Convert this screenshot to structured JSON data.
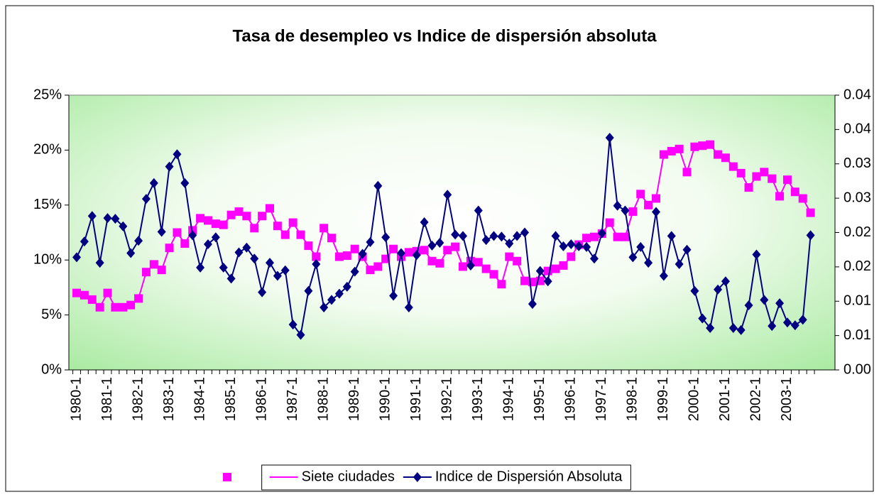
{
  "chart_data": {
    "type": "line",
    "title": "Tasa de desempleo vs Indice de dispersión absoluta",
    "categories": [
      "1980-1",
      null,
      null,
      null,
      "1981-1",
      null,
      null,
      null,
      "1982-1",
      null,
      null,
      null,
      "1983-1",
      null,
      null,
      null,
      "1984-1",
      null,
      null,
      null,
      "1985-1",
      null,
      null,
      null,
      "1986-1",
      null,
      null,
      null,
      "1987-1",
      null,
      null,
      null,
      "1988-1",
      null,
      null,
      null,
      "1989-1",
      null,
      null,
      null,
      "1990-1",
      null,
      null,
      null,
      "1991-1",
      null,
      null,
      null,
      "1992-1",
      null,
      null,
      null,
      "1993-1",
      null,
      null,
      null,
      "1994-1",
      null,
      null,
      null,
      "1995-1",
      null,
      null,
      null,
      "1996-1",
      null,
      null,
      null,
      "1997-1",
      null,
      null,
      null,
      "1998-1",
      null,
      null,
      null,
      "1999-1",
      null,
      null,
      null,
      "2000-1",
      null,
      null,
      null,
      "2001-1",
      null,
      null,
      null,
      "2002-1",
      null,
      null,
      null,
      "2003-1",
      null,
      null,
      null
    ],
    "series": [
      {
        "name": "Siete ciudades",
        "color": "#ff00ff",
        "marker": "square",
        "axis": "y",
        "values": [
          7.0,
          6.8,
          6.4,
          5.7,
          7.0,
          5.7,
          5.7,
          5.9,
          6.5,
          8.9,
          9.6,
          9.1,
          11.1,
          12.5,
          11.5,
          12.7,
          13.8,
          13.6,
          13.3,
          13.2,
          14.1,
          14.4,
          14.0,
          12.9,
          14.0,
          14.7,
          13.1,
          12.3,
          13.4,
          12.3,
          11.3,
          10.3,
          12.9,
          12.0,
          10.3,
          10.4,
          11.0,
          10.3,
          9.1,
          9.4,
          10.1,
          11.0,
          10.3,
          10.7,
          10.8,
          10.9,
          9.9,
          9.7,
          10.9,
          11.2,
          9.4,
          9.9,
          9.8,
          9.2,
          8.7,
          7.8,
          10.3,
          9.9,
          8.1,
          8.0,
          8.1,
          9.0,
          9.2,
          9.5,
          10.3,
          11.4,
          12.0,
          12.1,
          12.4,
          13.4,
          12.1,
          12.1,
          14.4,
          16.0,
          15.0,
          15.6,
          19.6,
          19.9,
          20.1,
          18.0,
          20.3,
          20.4,
          20.5,
          19.6,
          19.3,
          18.5,
          17.9,
          16.6,
          17.6,
          18.0,
          17.4,
          15.8,
          17.3,
          16.2,
          15.6,
          14.3
        ]
      },
      {
        "name": "Indice de Dispersión Absoluta",
        "color": "#000080",
        "marker": "diamond",
        "axis": "y2",
        "values": [
          0.0164,
          0.0187,
          0.0224,
          0.0156,
          0.0221,
          0.022,
          0.0209,
          0.017,
          0.0188,
          0.0249,
          0.0272,
          0.0201,
          0.0296,
          0.0314,
          0.0272,
          0.0196,
          0.0149,
          0.0183,
          0.0193,
          0.0149,
          0.0133,
          0.0171,
          0.0178,
          0.0162,
          0.0113,
          0.0156,
          0.0137,
          0.0145,
          0.0066,
          0.0051,
          0.0115,
          0.0154,
          0.0091,
          0.0102,
          0.0111,
          0.0121,
          0.0143,
          0.0169,
          0.0186,
          0.0268,
          0.0193,
          0.0108,
          0.017,
          0.0091,
          0.0167,
          0.0215,
          0.0181,
          0.0185,
          0.0255,
          0.0197,
          0.0195,
          0.0152,
          0.0232,
          0.0189,
          0.0195,
          0.0194,
          0.0184,
          0.0195,
          0.02,
          0.0096,
          0.0144,
          0.0129,
          0.0195,
          0.018,
          0.0183,
          0.018,
          0.0179,
          0.0162,
          0.0199,
          0.0338,
          0.0239,
          0.0232,
          0.0164,
          0.0179,
          0.0156,
          0.023,
          0.0137,
          0.0195,
          0.0154,
          0.0175,
          0.0115,
          0.0075,
          0.0061,
          0.0117,
          0.0129,
          0.0061,
          0.0058,
          0.0094,
          0.0168,
          0.0102,
          0.0064,
          0.0097,
          0.0069,
          0.0065,
          0.0073,
          0.0196
        ]
      }
    ],
    "ylim": [
      0,
      25
    ],
    "yticks": [
      {
        "value": 0,
        "label": "0%"
      },
      {
        "value": 5,
        "label": "5%"
      },
      {
        "value": 10,
        "label": "10%"
      },
      {
        "value": 15,
        "label": "15%"
      },
      {
        "value": 20,
        "label": "20%"
      },
      {
        "value": 25,
        "label": "25%"
      }
    ],
    "y2lim": [
      0,
      0.04
    ],
    "y2ticks": [
      {
        "value": 0,
        "label": "0.00"
      },
      {
        "value": 0.005,
        "label": "0.01"
      },
      {
        "value": 0.01,
        "label": "0.01"
      },
      {
        "value": 0.015,
        "label": "0.02"
      },
      {
        "value": 0.02,
        "label": "0.02"
      },
      {
        "value": 0.025,
        "label": "0.03"
      },
      {
        "value": 0.03,
        "label": "0.03"
      },
      {
        "value": 0.035,
        "label": "0.04"
      },
      {
        "value": 0.04,
        "label": "0.04"
      }
    ],
    "grid": false,
    "legend": "bottom"
  }
}
